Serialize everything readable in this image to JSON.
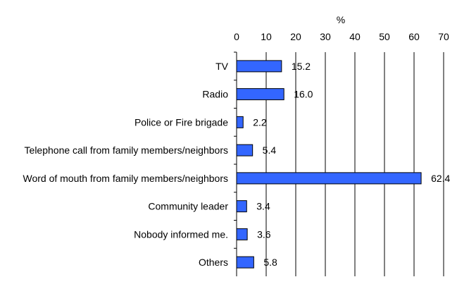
{
  "chart_data": {
    "type": "bar",
    "orientation": "horizontal",
    "unit_label": "%",
    "xlim": [
      0,
      70
    ],
    "xticks": [
      0,
      10,
      20,
      30,
      40,
      50,
      60,
      70
    ],
    "categories": [
      "TV",
      "Radio",
      "Police or Fire brigade",
      "Telephone call from family members/neighbors",
      "Word of mouth from family members/neighbors",
      "Community leader",
      "Nobody informed me.",
      "Others"
    ],
    "values": [
      15.2,
      16.0,
      2.2,
      5.4,
      62.4,
      3.4,
      3.6,
      5.8
    ],
    "value_labels": [
      "15.2",
      "16.0",
      "2.2",
      "5.4",
      "62.4",
      "3.4",
      "3.6",
      "5.8"
    ],
    "grid": "vertical lines on major ticks",
    "axis_position": "top",
    "legend": "none",
    "colors": {
      "bar": "#3366ff",
      "bar_stroke": "#000000",
      "grid": "#000000"
    }
  }
}
